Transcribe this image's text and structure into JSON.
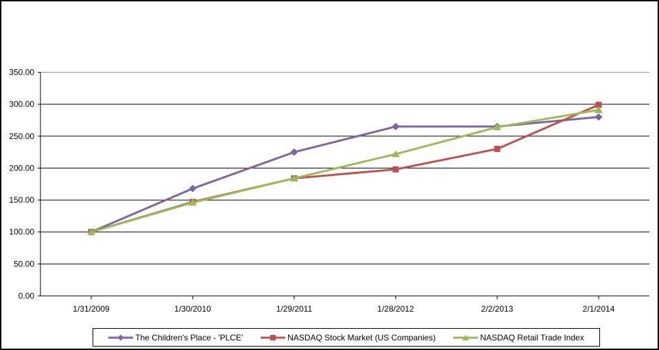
{
  "chart_data": {
    "type": "line",
    "title": "",
    "xlabel": "",
    "ylabel": "",
    "categories": [
      "1/31/2009",
      "1/30/2010",
      "1/29/2011",
      "1/28/2012",
      "2/2/2013",
      "2/1/2014"
    ],
    "series": [
      {
        "name": "The Children's Place - 'PLCE'",
        "color": "#8064A2",
        "marker": "diamond",
        "values": [
          100,
          168,
          225,
          265,
          265,
          280
        ]
      },
      {
        "name": "NASDAQ Stock Market (US Companies)",
        "color": "#C0504D",
        "marker": "square",
        "values": [
          100,
          147,
          184,
          198,
          230,
          299
        ]
      },
      {
        "name": "NASDAQ Retail Trade Index",
        "color": "#9BBB59",
        "marker": "triangle",
        "values": [
          100,
          146,
          184,
          222,
          264,
          291
        ]
      }
    ],
    "ylim": [
      0,
      350
    ],
    "y_tick_step": 50,
    "y_tick_labels": [
      "0.00",
      "50.00",
      "100.00",
      "150.00",
      "200.00",
      "250.00",
      "300.00",
      "350.00"
    ],
    "grid": "horizontal-on",
    "legend_position": "bottom-center",
    "colors": {
      "gridline": "#000000",
      "top_gridline": "#8C8C8C",
      "axis": "#000000",
      "text": "#000000",
      "plot_background": "#FFFFFF",
      "outer_border": "#000000"
    }
  }
}
